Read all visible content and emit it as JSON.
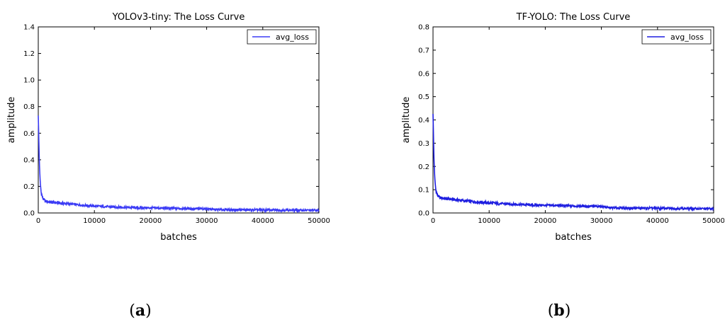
{
  "chart_data": [
    {
      "type": "line",
      "title": "YOLOv3-tiny: The Loss Curve",
      "xlabel": "batches",
      "ylabel": "amplitude",
      "xlim": [
        0,
        50000
      ],
      "ylim": [
        0,
        1.4
      ],
      "xticks": [
        "0",
        "10000",
        "20000",
        "30000",
        "40000",
        "50000"
      ],
      "yticks": [
        "0.0",
        "0.2",
        "0.4",
        "0.6",
        "0.8",
        "1.0",
        "1.2",
        "1.4"
      ],
      "legend_position": "top-right",
      "grid": false,
      "series": [
        {
          "name": "avg_loss",
          "color": "#3b3bf5",
          "x": [
            0,
            150,
            300,
            500,
            800,
            1200,
            1600,
            2000,
            3000,
            4000,
            5000,
            6000,
            8000,
            10000,
            12000,
            15000,
            18000,
            20000,
            22000,
            25000,
            28000,
            30000,
            30500,
            31000,
            32000,
            35000,
            40000,
            45000,
            50000
          ],
          "y": [
            0.74,
            0.45,
            0.26,
            0.16,
            0.11,
            0.09,
            0.085,
            0.082,
            0.078,
            0.074,
            0.07,
            0.066,
            0.058,
            0.052,
            0.047,
            0.043,
            0.039,
            0.038,
            0.036,
            0.034,
            0.032,
            0.031,
            0.03,
            0.026,
            0.025,
            0.024,
            0.022,
            0.021,
            0.02
          ]
        }
      ]
    },
    {
      "type": "line",
      "title": "TF-YOLO: The Loss Curve",
      "xlabel": "batches",
      "ylabel": "amplitude",
      "xlim": [
        0,
        50000
      ],
      "ylim": [
        0,
        0.8
      ],
      "xticks": [
        "0",
        "10000",
        "20000",
        "30000",
        "40000",
        "50000"
      ],
      "yticks": [
        "0.0",
        "0.1",
        "0.2",
        "0.3",
        "0.4",
        "0.5",
        "0.6",
        "0.7",
        "0.8"
      ],
      "legend_position": "top-right",
      "grid": false,
      "series": [
        {
          "name": "avg_loss",
          "color": "#1f1fe0",
          "x": [
            0,
            150,
            300,
            500,
            800,
            1200,
            1600,
            2000,
            3000,
            4000,
            5000,
            6000,
            8000,
            10000,
            12000,
            15000,
            18000,
            20000,
            22000,
            25000,
            28000,
            30000,
            30500,
            31000,
            32000,
            35000,
            40000,
            45000,
            50000
          ],
          "y": [
            0.43,
            0.25,
            0.15,
            0.1,
            0.075,
            0.066,
            0.064,
            0.062,
            0.06,
            0.057,
            0.054,
            0.051,
            0.047,
            0.043,
            0.04,
            0.037,
            0.034,
            0.033,
            0.032,
            0.03,
            0.029,
            0.028,
            0.027,
            0.023,
            0.022,
            0.021,
            0.02,
            0.019,
            0.018
          ]
        }
      ]
    }
  ],
  "panels": [
    "a",
    "b"
  ]
}
